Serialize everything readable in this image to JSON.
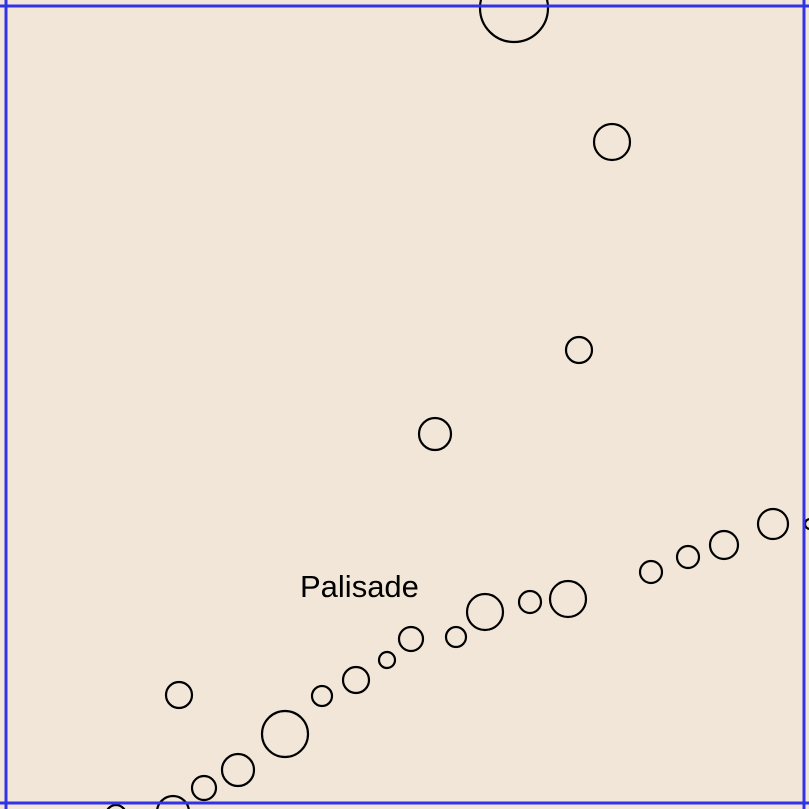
{
  "map": {
    "background_color": "#f1e6d8",
    "frame_color": "#3333e6",
    "symbol_stroke_color": "#000000",
    "labels": {
      "palisade": "Palisade"
    },
    "features": {
      "palisade_posts": "circle-markers"
    }
  }
}
